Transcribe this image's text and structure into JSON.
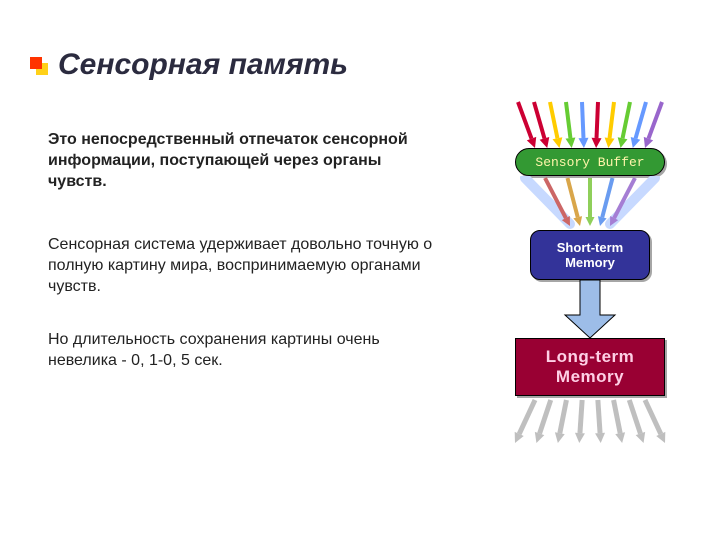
{
  "title": "Сенсорная память",
  "paragraphs": {
    "p1": "Это непосредственный отпечаток сенсорной информации, поступающей через органы чувств.",
    "p2": "Сенсорная система удерживает довольно точную о полную картину мира, воспринимаемую органами чувств.",
    "p3": "Но длительность сохранения картины очень невелика - 0, 1-0, 5 сек."
  },
  "diagram": {
    "input_arrow_colors": [
      "#cc0033",
      "#cc0033",
      "#ffcc00",
      "#66cc33",
      "#6699ff",
      "#cc0033",
      "#ffcc00",
      "#66cc33",
      "#6699ff",
      "#9966cc"
    ],
    "sensory": {
      "label": "Sensory Buffer",
      "bg": "#339933",
      "text": "#fff5aa"
    },
    "sensory_to_stm": {
      "arrow_colors": [
        "#cc6666",
        "#d9a64a",
        "#8fcf5a",
        "#6a9cf0",
        "#a57ed4"
      ],
      "bg_stroke": "#c7d9ff"
    },
    "stm": {
      "label1": "Short-term",
      "label2": "Memory",
      "bg": "#333399",
      "text": "#ffffff"
    },
    "stm_to_ltm_arrow_color": "#9dbde8",
    "ltm": {
      "label1": "Long-term",
      "label2": "Memory",
      "bg": "#990033",
      "text": "#fecfe5"
    },
    "output_arrow_color": "#bfbfbf"
  },
  "bullet_colors": {
    "front": "#ff3300",
    "back": "#ffcc00"
  },
  "background": "#ffffff"
}
